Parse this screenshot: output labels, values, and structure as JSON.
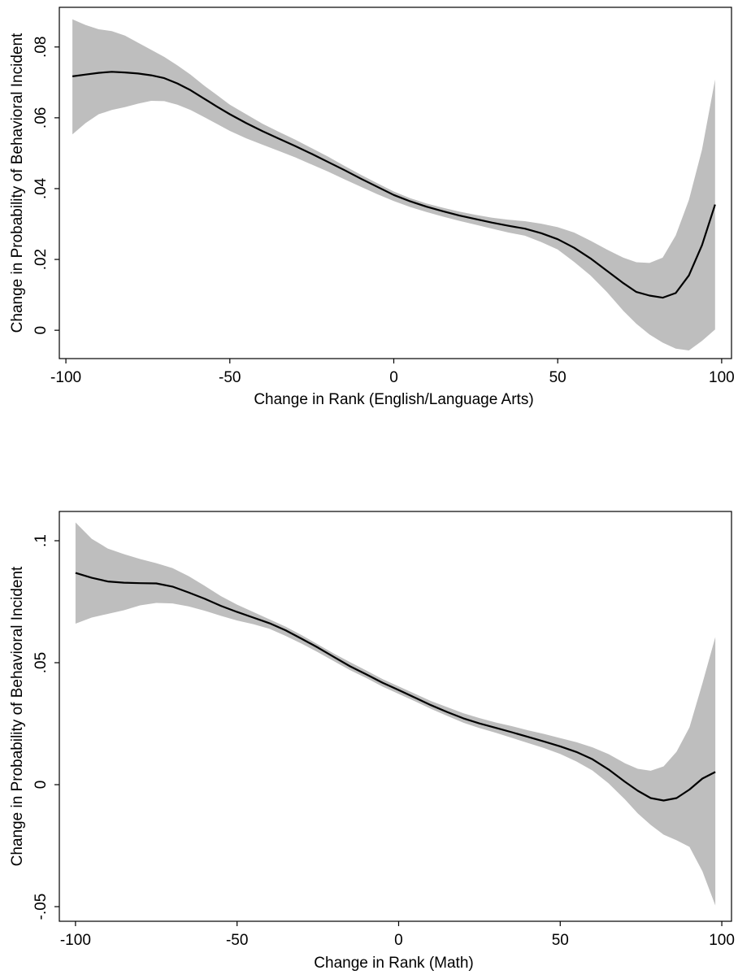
{
  "chart_data": [
    {
      "type": "line",
      "xlabel": "Change in Rank (English/Language Arts)",
      "ylabel": "Change in Probability of Behavioral Incident",
      "xlim": [
        -102,
        103
      ],
      "ylim": [
        -0.008,
        0.0912
      ],
      "xticks": [
        -100,
        -50,
        0,
        50,
        100
      ],
      "xtick_labels": [
        "-100",
        "-50",
        "0",
        "50",
        "100"
      ],
      "yticks": [
        0,
        0.02,
        0.04,
        0.06,
        0.08
      ],
      "ytick_labels": [
        "0",
        ".02",
        ".04",
        ".06",
        ".08"
      ],
      "grid": false,
      "series": [
        {
          "role": "estimate",
          "color": "#000000",
          "x": [
            -98,
            -94,
            -90,
            -86,
            -82,
            -78,
            -74,
            -70,
            -66,
            -62,
            -58,
            -54,
            -50,
            -45,
            -40,
            -35,
            -30,
            -25,
            -20,
            -15,
            -10,
            -5,
            0,
            5,
            10,
            15,
            20,
            25,
            30,
            35,
            40,
            45,
            50,
            55,
            60,
            65,
            70,
            74,
            78,
            82,
            86,
            90,
            94,
            98
          ],
          "y": [
            0.0717,
            0.0722,
            0.0727,
            0.073,
            0.0728,
            0.0725,
            0.072,
            0.0712,
            0.0697,
            0.0678,
            0.0655,
            0.0632,
            0.061,
            0.0585,
            0.0562,
            0.0541,
            0.052,
            0.0498,
            0.0475,
            0.0452,
            0.0428,
            0.0405,
            0.0382,
            0.0364,
            0.0349,
            0.0336,
            0.0324,
            0.0314,
            0.0304,
            0.0295,
            0.0287,
            0.0274,
            0.0257,
            0.0233,
            0.0203,
            0.0168,
            0.0133,
            0.0108,
            0.0098,
            0.0092,
            0.0105,
            0.0155,
            0.024,
            0.0355
          ]
        },
        {
          "role": "ci_upper",
          "color": "#bebebe",
          "x": [
            -98,
            -94,
            -90,
            -86,
            -82,
            -78,
            -74,
            -70,
            -66,
            -62,
            -58,
            -54,
            -50,
            -45,
            -40,
            -35,
            -30,
            -25,
            -20,
            -15,
            -10,
            -5,
            0,
            5,
            10,
            15,
            20,
            25,
            30,
            35,
            40,
            45,
            50,
            55,
            60,
            65,
            70,
            74,
            78,
            82,
            86,
            90,
            94,
            98
          ],
          "y": [
            0.0878,
            0.0862,
            0.085,
            0.0845,
            0.0832,
            0.0812,
            0.0792,
            0.0772,
            0.0748,
            0.0722,
            0.0692,
            0.0665,
            0.0637,
            0.061,
            0.0583,
            0.056,
            0.0538,
            0.0514,
            0.049,
            0.0464,
            0.0439,
            0.0415,
            0.0392,
            0.0373,
            0.0358,
            0.0346,
            0.0335,
            0.0326,
            0.0318,
            0.0312,
            0.0308,
            0.0301,
            0.0291,
            0.0276,
            0.0253,
            0.0228,
            0.0205,
            0.0192,
            0.019,
            0.0205,
            0.0268,
            0.0368,
            0.051,
            0.0708
          ]
        },
        {
          "role": "ci_lower",
          "color": "#bebebe",
          "x": [
            -98,
            -94,
            -90,
            -86,
            -82,
            -78,
            -74,
            -70,
            -66,
            -62,
            -58,
            -54,
            -50,
            -45,
            -40,
            -35,
            -30,
            -25,
            -20,
            -15,
            -10,
            -5,
            0,
            5,
            10,
            15,
            20,
            25,
            30,
            35,
            40,
            45,
            50,
            55,
            60,
            65,
            70,
            74,
            78,
            82,
            86,
            90,
            94,
            98
          ],
          "y": [
            0.0553,
            0.0585,
            0.061,
            0.0622,
            0.063,
            0.064,
            0.0648,
            0.0647,
            0.0637,
            0.0622,
            0.0603,
            0.0583,
            0.0563,
            0.0542,
            0.0524,
            0.0506,
            0.0488,
            0.0468,
            0.0448,
            0.0426,
            0.0405,
            0.0384,
            0.0365,
            0.0348,
            0.0334,
            0.0321,
            0.0309,
            0.0298,
            0.0287,
            0.0276,
            0.0267,
            0.0249,
            0.0228,
            0.0193,
            0.0155,
            0.0108,
            0.0055,
            0.0018,
            -0.0012,
            -0.0035,
            -0.0052,
            -0.0057,
            -0.003,
            0.0002
          ]
        }
      ]
    },
    {
      "type": "line",
      "xlabel": "Change in Rank (Math)",
      "ylabel": "Change in Probability of Behavioral Incident",
      "xlim": [
        -105,
        103
      ],
      "ylim": [
        -0.056,
        0.112
      ],
      "xticks": [
        -100,
        -50,
        0,
        50,
        100
      ],
      "xtick_labels": [
        "-100",
        "-50",
        "0",
        "50",
        "100"
      ],
      "yticks": [
        -0.05,
        0,
        0.05,
        0.1
      ],
      "ytick_labels": [
        "-.05",
        "0",
        ".05",
        ".1"
      ],
      "grid": false,
      "series": [
        {
          "role": "estimate",
          "color": "#000000",
          "x": [
            -100,
            -95,
            -90,
            -85,
            -80,
            -75,
            -70,
            -65,
            -60,
            -55,
            -50,
            -45,
            -40,
            -35,
            -30,
            -25,
            -20,
            -15,
            -10,
            -5,
            0,
            5,
            10,
            15,
            20,
            25,
            30,
            35,
            40,
            45,
            50,
            55,
            60,
            65,
            70,
            74,
            78,
            82,
            86,
            90,
            94,
            98
          ],
          "y": [
            0.0868,
            0.0848,
            0.0833,
            0.0828,
            0.0826,
            0.0825,
            0.0812,
            0.0788,
            0.0762,
            0.0733,
            0.0708,
            0.0685,
            0.0662,
            0.0633,
            0.0598,
            0.0562,
            0.0523,
            0.0485,
            0.0452,
            0.0418,
            0.0388,
            0.0357,
            0.0326,
            0.0298,
            0.0272,
            0.0251,
            0.0233,
            0.0215,
            0.0196,
            0.0177,
            0.0157,
            0.0134,
            0.0104,
            0.0062,
            0.0012,
            -0.0025,
            -0.0055,
            -0.0065,
            -0.0055,
            -0.002,
            0.0025,
            0.0052
          ]
        },
        {
          "role": "ci_upper",
          "color": "#bebebe",
          "x": [
            -100,
            -95,
            -90,
            -85,
            -80,
            -75,
            -70,
            -65,
            -60,
            -55,
            -50,
            -45,
            -40,
            -35,
            -30,
            -25,
            -20,
            -15,
            -10,
            -5,
            0,
            5,
            10,
            15,
            20,
            25,
            30,
            35,
            40,
            45,
            50,
            55,
            60,
            65,
            70,
            74,
            78,
            82,
            86,
            90,
            94,
            98
          ],
          "y": [
            0.1075,
            0.1008,
            0.0968,
            0.0945,
            0.0925,
            0.0908,
            0.0888,
            0.0855,
            0.0815,
            0.0773,
            0.0738,
            0.0708,
            0.0678,
            0.0648,
            0.0613,
            0.0575,
            0.0537,
            0.0502,
            0.0468,
            0.0433,
            0.0403,
            0.0373,
            0.0343,
            0.0318,
            0.0293,
            0.0273,
            0.0255,
            0.024,
            0.0223,
            0.0208,
            0.0191,
            0.0174,
            0.0153,
            0.0125,
            0.0088,
            0.0065,
            0.0057,
            0.0075,
            0.0135,
            0.0235,
            0.0415,
            0.0605
          ]
        },
        {
          "role": "ci_lower",
          "color": "#bebebe",
          "x": [
            -100,
            -95,
            -90,
            -85,
            -80,
            -75,
            -70,
            -65,
            -60,
            -55,
            -50,
            -45,
            -40,
            -35,
            -30,
            -25,
            -20,
            -15,
            -10,
            -5,
            0,
            5,
            10,
            15,
            20,
            25,
            30,
            35,
            40,
            45,
            50,
            55,
            60,
            65,
            70,
            74,
            78,
            82,
            86,
            90,
            94,
            98
          ],
          "y": [
            0.066,
            0.0685,
            0.07,
            0.0715,
            0.0735,
            0.0745,
            0.0743,
            0.0731,
            0.0713,
            0.0692,
            0.0673,
            0.0658,
            0.0639,
            0.061,
            0.0578,
            0.0543,
            0.0506,
            0.0469,
            0.0437,
            0.0402,
            0.0372,
            0.0342,
            0.0311,
            0.0282,
            0.0254,
            0.0232,
            0.0213,
            0.0192,
            0.0171,
            0.015,
            0.0126,
            0.0095,
            0.0058,
            0.0005,
            -0.006,
            -0.0118,
            -0.0165,
            -0.0205,
            -0.0228,
            -0.0255,
            -0.0355,
            -0.0495
          ]
        }
      ]
    }
  ]
}
